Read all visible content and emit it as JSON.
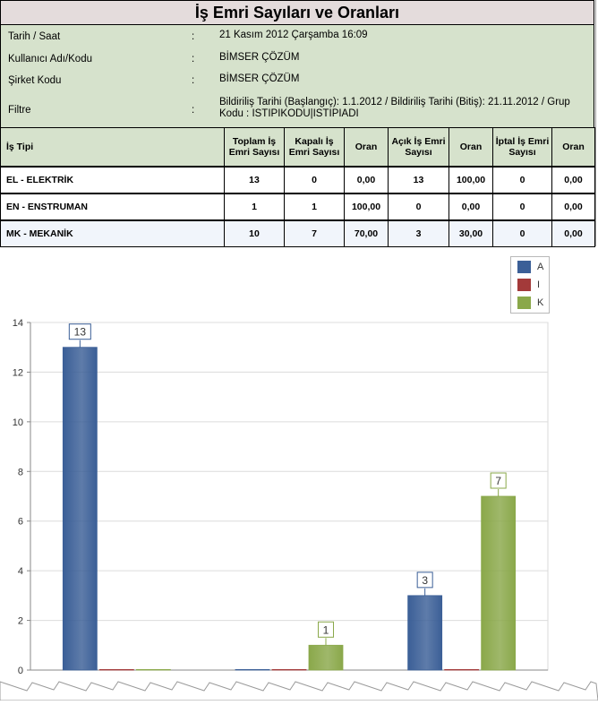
{
  "report": {
    "title": "İş Emri Sayıları ve Oranları",
    "info": [
      {
        "label": "Tarih / Saat",
        "sep": ":",
        "value": "21 Kasım 2012 Çarşamba 16:09"
      },
      {
        "label": "Kullanıcı Adı/Kodu",
        "sep": ":",
        "value": "BİMSER ÇÖZÜM"
      },
      {
        "label": "Şirket Kodu",
        "sep": ":",
        "value": "BİMSER ÇÖZÜM"
      },
      {
        "label": "Filtre",
        "sep": ":",
        "value": "Bildiriliş Tarihi (Başlangıç): 1.1.2012 / Bildiriliş Tarihi (Bitiş): 21.11.2012 / Grup Kodu : ISTIPIKODU|ISTIPIADI"
      }
    ]
  },
  "table": {
    "headers": [
      "İş Tipi",
      "Toplam İş Emri Sayısı",
      "Kapalı İş Emri Sayısı",
      "Oran",
      "Açık İş Emri Sayısı",
      "Oran",
      "İptal İş Emri Sayısı",
      "Oran"
    ],
    "rows": [
      [
        "EL - ELEKTRİK",
        "13",
        "0",
        "0,00",
        "13",
        "100,00",
        "0",
        "0,00"
      ],
      [
        "EN - ENSTRUMAN",
        "1",
        "1",
        "100,00",
        "0",
        "0,00",
        "0",
        "0,00"
      ],
      [
        "MK - MEKANİK",
        "10",
        "7",
        "70,00",
        "3",
        "30,00",
        "0",
        "0,00"
      ]
    ]
  },
  "chart_data": {
    "type": "bar",
    "categories": [
      "EL - ELEKTRİK",
      "EN - ENSTRUMAN",
      "MK - MEKANİK"
    ],
    "series": [
      {
        "name": "A",
        "color": "#3b5f97",
        "values": [
          13,
          0,
          3
        ]
      },
      {
        "name": "I",
        "color": "#a33a3a",
        "values": [
          0,
          0,
          0
        ]
      },
      {
        "name": "K",
        "color": "#8aa84a",
        "values": [
          0,
          1,
          7
        ]
      }
    ],
    "ylim": [
      0,
      14
    ],
    "yticks": [
      0,
      2,
      4,
      6,
      8,
      10,
      12,
      14
    ],
    "grid": true,
    "legend": "top-right",
    "title": "",
    "xlabel": "",
    "ylabel": ""
  }
}
